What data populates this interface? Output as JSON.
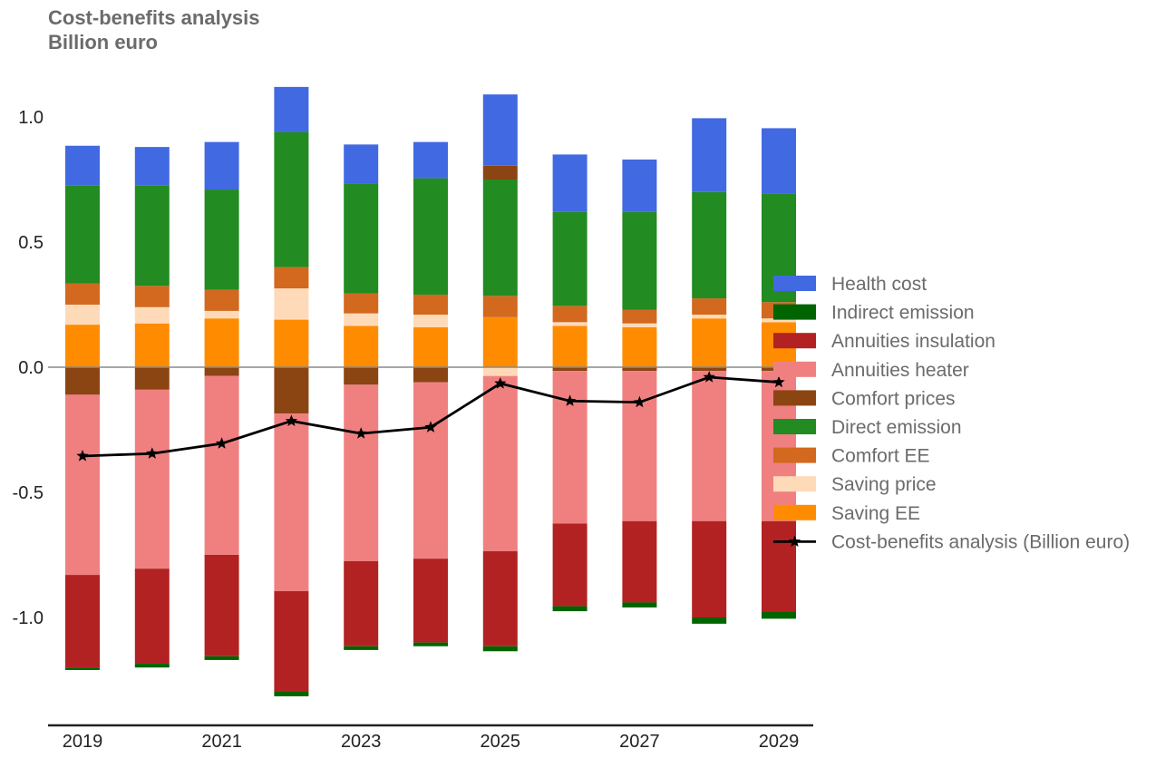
{
  "chart_data": {
    "type": "bar",
    "stacked": true,
    "title": "Cost-benefits analysis",
    "subtitle": "Billion euro",
    "xlabel": "",
    "ylabel": "",
    "categories": [
      "2019",
      "2020",
      "2021",
      "2022",
      "2023",
      "2024",
      "2025",
      "2026",
      "2027",
      "2028",
      "2029"
    ],
    "x_tick_labels": [
      "2019",
      "2021",
      "2023",
      "2025",
      "2027",
      "2029"
    ],
    "y_ticks": [
      1.0,
      0.5,
      0.0,
      -0.5,
      -1.0
    ],
    "y_tick_labels": [
      "1.0",
      "0.5",
      "0.0",
      "-0.5",
      "-1.0"
    ],
    "ylim": [
      -1.4,
      1.18
    ],
    "grid": false,
    "zero_line": true,
    "legend_position": "right",
    "series": [
      {
        "name": "Saving EE",
        "color": "#ff8c00",
        "values": [
          0.17,
          0.175,
          0.195,
          0.19,
          0.165,
          0.16,
          0.2,
          0.165,
          0.16,
          0.195,
          0.18
        ]
      },
      {
        "name": "Saving price",
        "color": "#ffdab9",
        "values": [
          0.08,
          0.065,
          0.03,
          0.125,
          0.05,
          0.05,
          -0.035,
          0.015,
          0.015,
          0.015,
          0.015
        ]
      },
      {
        "name": "Comfort EE",
        "color": "#d2691e",
        "values": [
          0.085,
          0.085,
          0.085,
          0.085,
          0.08,
          0.08,
          0.085,
          0.065,
          0.055,
          0.065,
          0.065
        ]
      },
      {
        "name": "Direct emission",
        "color": "#228b22",
        "values": [
          0.39,
          0.4,
          0.4,
          0.54,
          0.44,
          0.465,
          0.465,
          0.375,
          0.39,
          0.425,
          0.435
        ]
      },
      {
        "name": "Comfort prices",
        "color": "#8b4513",
        "values": [
          -0.11,
          -0.09,
          -0.035,
          -0.185,
          -0.07,
          -0.06,
          0.055,
          -0.015,
          -0.015,
          -0.015,
          -0.015
        ]
      },
      {
        "name": "Annuities heater",
        "color": "#f08080",
        "values": [
          -0.72,
          -0.715,
          -0.715,
          -0.71,
          -0.705,
          -0.705,
          -0.7,
          -0.61,
          -0.6,
          -0.6,
          -0.6
        ]
      },
      {
        "name": "Annuities insulation",
        "color": "#b22222",
        "values": [
          -0.37,
          -0.38,
          -0.405,
          -0.4,
          -0.34,
          -0.335,
          -0.38,
          -0.33,
          -0.325,
          -0.385,
          -0.36
        ]
      },
      {
        "name": "Indirect emission",
        "color": "#006400",
        "values": [
          -0.01,
          -0.015,
          -0.015,
          -0.02,
          -0.015,
          -0.015,
          -0.02,
          -0.02,
          -0.02,
          -0.025,
          -0.03
        ]
      },
      {
        "name": "Health cost",
        "color": "#4169e1",
        "values": [
          0.16,
          0.155,
          0.19,
          0.18,
          0.155,
          0.145,
          0.285,
          0.23,
          0.21,
          0.295,
          0.26
        ]
      }
    ],
    "line": {
      "name": "Cost-benefits analysis (Billion euro)",
      "color": "#000000",
      "marker": "star",
      "values": [
        -0.355,
        -0.345,
        -0.305,
        -0.215,
        -0.265,
        -0.24,
        -0.065,
        -0.135,
        -0.14,
        -0.04,
        -0.06
      ]
    },
    "legend_order": [
      "Health cost",
      "Indirect emission",
      "Annuities insulation",
      "Annuities heater",
      "Comfort prices",
      "Direct emission",
      "Comfort EE",
      "Saving price",
      "Saving EE",
      "Cost-benefits analysis (Billion euro)"
    ]
  }
}
